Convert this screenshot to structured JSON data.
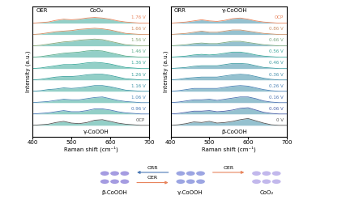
{
  "chart_data": [
    {
      "type": "line",
      "title": "OER",
      "x_label": "Raman shift (cm⁻¹)",
      "y_label": "Intensity (a.u.)",
      "annotations": [
        "CoO₂",
        "γ-CoOOH"
      ],
      "x": [
        400,
        420,
        440,
        460,
        480,
        500,
        520,
        540,
        560,
        580,
        600,
        620,
        640,
        660,
        680,
        700
      ],
      "xlim": [
        400,
        700
      ],
      "xticks": [
        400,
        500,
        600,
        700
      ],
      "ylim": [
        -0.9,
        10.6
      ],
      "tick_labels": "x",
      "color": "#3aa89a",
      "series": [
        {
          "name": "OCP",
          "color": "#555555",
          "values": [
            0.1,
            0.15,
            0.2,
            0.35,
            0.45,
            0.3,
            0.25,
            0.35,
            0.55,
            0.6,
            0.45,
            0.3,
            0.2,
            0.15,
            0.1,
            0.1
          ]
        },
        {
          "name": "0.96 V",
          "color": "#4a78b5",
          "values": [
            1.1,
            1.15,
            1.2,
            1.3,
            1.4,
            1.3,
            1.3,
            1.4,
            1.55,
            1.55,
            1.45,
            1.3,
            1.2,
            1.15,
            1.1,
            1.1
          ]
        },
        {
          "name": "1.06 V",
          "color": "#4a86b5",
          "values": [
            2.1,
            2.15,
            2.2,
            2.3,
            2.4,
            2.35,
            2.35,
            2.45,
            2.55,
            2.6,
            2.45,
            2.3,
            2.2,
            2.15,
            2.1,
            2.1
          ]
        },
        {
          "name": "1.16 V",
          "color": "#3f93a8",
          "values": [
            3.1,
            3.15,
            3.25,
            3.3,
            3.4,
            3.35,
            3.4,
            3.5,
            3.6,
            3.6,
            3.5,
            3.35,
            3.2,
            3.15,
            3.1,
            3.1
          ]
        },
        {
          "name": "1.26 V",
          "color": "#3a9f9c",
          "values": [
            4.1,
            4.15,
            4.25,
            4.35,
            4.4,
            4.4,
            4.45,
            4.55,
            4.6,
            4.6,
            4.5,
            4.35,
            4.2,
            4.15,
            4.1,
            4.1
          ]
        },
        {
          "name": "1.36 V",
          "color": "#3aa89a",
          "values": [
            5.1,
            5.15,
            5.25,
            5.35,
            5.45,
            5.45,
            5.5,
            5.6,
            5.65,
            5.6,
            5.5,
            5.35,
            5.2,
            5.15,
            5.1,
            5.1
          ]
        },
        {
          "name": "1.46 V",
          "color": "#5aab8a",
          "values": [
            6.1,
            6.15,
            6.25,
            6.35,
            6.45,
            6.5,
            6.55,
            6.65,
            6.7,
            6.65,
            6.5,
            6.35,
            6.2,
            6.15,
            6.1,
            6.1
          ]
        },
        {
          "name": "1.56 V",
          "color": "#8aa878",
          "values": [
            7.1,
            7.15,
            7.25,
            7.35,
            7.45,
            7.5,
            7.6,
            7.65,
            7.7,
            7.65,
            7.5,
            7.35,
            7.2,
            7.15,
            7.1,
            7.1
          ]
        },
        {
          "name": "1.66 V",
          "color": "#d08a5e",
          "values": [
            8.1,
            8.15,
            8.25,
            8.35,
            8.4,
            8.45,
            8.55,
            8.6,
            8.65,
            8.6,
            8.5,
            8.35,
            8.2,
            8.15,
            8.1,
            8.1
          ]
        },
        {
          "name": "1.76 V",
          "color": "#e8845c",
          "values": [
            9.1,
            9.15,
            9.2,
            9.35,
            9.45,
            9.4,
            9.45,
            9.55,
            9.6,
            9.55,
            9.45,
            9.3,
            9.2,
            9.15,
            9.1,
            9.1
          ]
        }
      ]
    },
    {
      "type": "line",
      "title": "ORR",
      "x_label": "Raman shift (cm⁻¹)",
      "y_label": "Intensity (a.u.)",
      "annotations": [
        "γ-CoOOH",
        "β-CoOOH"
      ],
      "x": [
        400,
        420,
        440,
        460,
        480,
        500,
        520,
        540,
        560,
        580,
        600,
        620,
        640,
        660,
        680,
        700
      ],
      "xlim": [
        400,
        700
      ],
      "xticks": [
        400,
        500,
        600,
        700
      ],
      "ylim": [
        -0.9,
        10.6
      ],
      "tick_labels": "x",
      "color": "#3f8fa8",
      "series": [
        {
          "name": "0 V",
          "color": "#555555",
          "values": [
            0.1,
            0.15,
            0.25,
            0.4,
            0.35,
            0.45,
            0.3,
            0.35,
            0.45,
            0.6,
            0.7,
            0.5,
            0.3,
            0.15,
            0.1,
            0.1
          ]
        },
        {
          "name": "0.06 V",
          "color": "#4a60a8",
          "values": [
            1.1,
            1.15,
            1.25,
            1.35,
            1.35,
            1.4,
            1.3,
            1.35,
            1.45,
            1.6,
            1.65,
            1.45,
            1.25,
            1.15,
            1.1,
            1.1
          ]
        },
        {
          "name": "0.16 V",
          "color": "#4a70b0",
          "values": [
            2.1,
            2.15,
            2.25,
            2.35,
            2.35,
            2.4,
            2.3,
            2.4,
            2.5,
            2.6,
            2.6,
            2.45,
            2.25,
            2.15,
            2.1,
            2.1
          ]
        },
        {
          "name": "0.26 V",
          "color": "#4a80b5",
          "values": [
            3.1,
            3.15,
            3.25,
            3.35,
            3.35,
            3.35,
            3.35,
            3.45,
            3.55,
            3.6,
            3.55,
            3.4,
            3.25,
            3.15,
            3.1,
            3.1
          ]
        },
        {
          "name": "0.36 V",
          "color": "#4590ad",
          "values": [
            4.1,
            4.15,
            4.25,
            4.3,
            4.35,
            4.35,
            4.35,
            4.45,
            4.55,
            4.6,
            4.55,
            4.4,
            4.25,
            4.15,
            4.1,
            4.1
          ]
        },
        {
          "name": "0.46 V",
          "color": "#3f9ca2",
          "values": [
            5.1,
            5.15,
            5.2,
            5.3,
            5.35,
            5.35,
            5.35,
            5.45,
            5.55,
            5.55,
            5.5,
            5.35,
            5.2,
            5.15,
            5.1,
            5.1
          ]
        },
        {
          "name": "0.56 V",
          "color": "#3aa89a",
          "values": [
            6.1,
            6.15,
            6.2,
            6.3,
            6.35,
            6.3,
            6.35,
            6.45,
            6.55,
            6.55,
            6.45,
            6.3,
            6.2,
            6.15,
            6.1,
            6.1
          ]
        },
        {
          "name": "0.66 V",
          "color": "#7aa880",
          "values": [
            7.1,
            7.15,
            7.2,
            7.3,
            7.35,
            7.3,
            7.3,
            7.4,
            7.5,
            7.5,
            7.4,
            7.3,
            7.2,
            7.15,
            7.1,
            7.1
          ]
        },
        {
          "name": "0.86 V",
          "color": "#c99068",
          "values": [
            8.1,
            8.15,
            8.2,
            8.3,
            8.4,
            8.3,
            8.3,
            8.4,
            8.5,
            8.5,
            8.4,
            8.3,
            8.2,
            8.15,
            8.1,
            8.1
          ]
        },
        {
          "name": "OCP",
          "color": "#e8845c",
          "values": [
            9.1,
            9.15,
            9.2,
            9.3,
            9.4,
            9.3,
            9.25,
            9.35,
            9.5,
            9.55,
            9.45,
            9.3,
            9.2,
            9.15,
            9.1,
            9.1
          ]
        }
      ]
    }
  ],
  "schematic": {
    "phases": [
      "β-CoOOH",
      "γ-CoOOH",
      "CoO₂"
    ],
    "arrows": [
      {
        "from": "γ-CoOOH",
        "to": "β-CoOOH",
        "label": "ORR"
      },
      {
        "from": "β-CoOOH",
        "to": "γ-CoOOH",
        "label": "OER"
      },
      {
        "from": "γ-CoOOH",
        "to": "CoO₂",
        "label": "OER"
      }
    ]
  }
}
